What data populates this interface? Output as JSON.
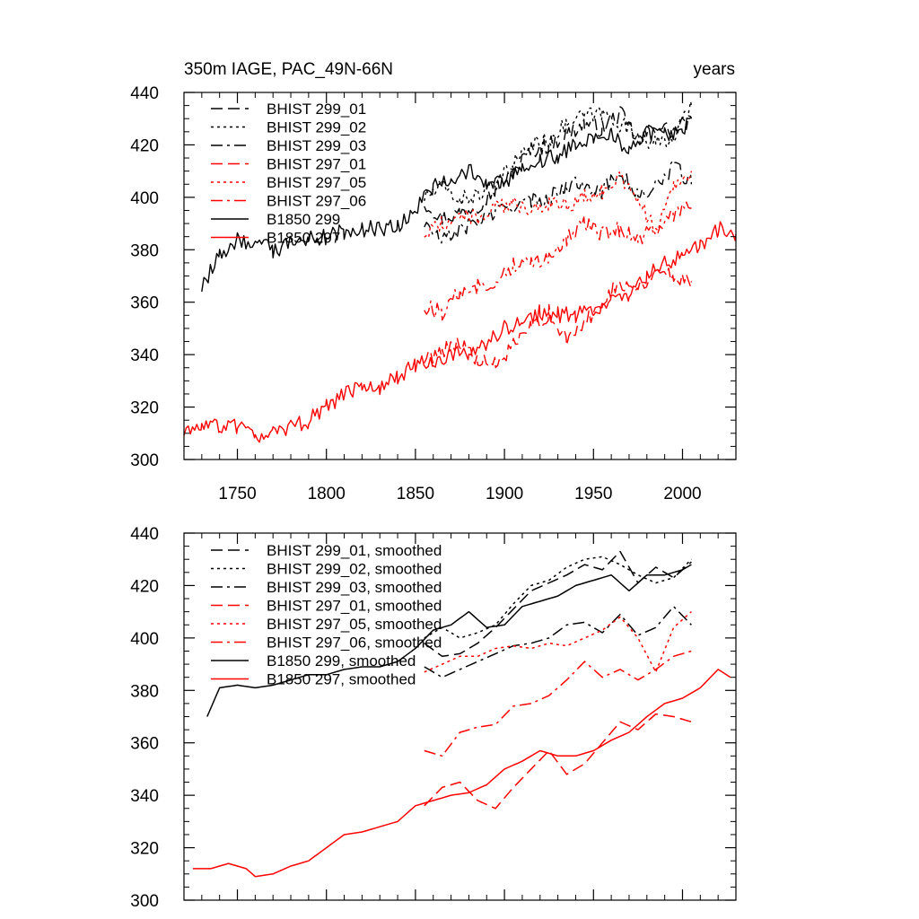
{
  "chart_data": [
    {
      "type": "line",
      "title_left": "350m IAGE, PAC_49N-66N",
      "title_right": "years",
      "xlabel": "",
      "ylabel": "",
      "xlim": [
        1720,
        2030
      ],
      "ylim": [
        300,
        440
      ],
      "x_ticks": [
        1750,
        1800,
        1850,
        1900,
        1950,
        2000
      ],
      "y_ticks": [
        300,
        320,
        340,
        360,
        380,
        400,
        420,
        440
      ],
      "legend_position": "top-left",
      "series": [
        {
          "name": "BHIST 299_01",
          "color": "#000000",
          "dash": "dash",
          "x": [
            1855,
            1865,
            1875,
            1885,
            1895,
            1905,
            1915,
            1925,
            1935,
            1945,
            1955,
            1965,
            1975,
            1985,
            1995,
            2005
          ],
          "y": [
            398,
            392,
            394,
            397,
            403,
            410,
            418,
            420,
            424,
            428,
            426,
            432,
            422,
            427,
            425,
            430
          ]
        },
        {
          "name": "BHIST 299_02",
          "color": "#000000",
          "dash": "dot",
          "x": [
            1855,
            1865,
            1875,
            1885,
            1895,
            1905,
            1915,
            1925,
            1935,
            1945,
            1955,
            1965,
            1975,
            1985,
            1995,
            2005
          ],
          "y": [
            400,
            404,
            399,
            401,
            404,
            413,
            420,
            422,
            428,
            431,
            432,
            428,
            424,
            420,
            423,
            435
          ]
        },
        {
          "name": "BHIST 299_03",
          "color": "#000000",
          "dash": "dashdot",
          "x": [
            1855,
            1865,
            1875,
            1885,
            1895,
            1905,
            1915,
            1925,
            1935,
            1945,
            1955,
            1965,
            1975,
            1985,
            1995,
            2005
          ],
          "y": [
            390,
            383,
            388,
            391,
            394,
            397,
            398,
            400,
            404,
            406,
            402,
            410,
            400,
            404,
            412,
            405
          ]
        },
        {
          "name": "BHIST 297_01",
          "color": "#ff0000",
          "dash": "dash",
          "x": [
            1855,
            1865,
            1875,
            1885,
            1895,
            1905,
            1915,
            1925,
            1935,
            1945,
            1955,
            1965,
            1975,
            1985,
            1995,
            2005
          ],
          "y": [
            338,
            342,
            345,
            337,
            336,
            343,
            350,
            356,
            345,
            352,
            360,
            368,
            365,
            372,
            370,
            368
          ]
        },
        {
          "name": "BHIST 297_05",
          "color": "#ff0000",
          "dash": "dot",
          "x": [
            1855,
            1865,
            1875,
            1885,
            1895,
            1905,
            1915,
            1925,
            1935,
            1945,
            1955,
            1965,
            1975,
            1985,
            1995,
            2005
          ],
          "y": [
            386,
            390,
            393,
            392,
            396,
            397,
            396,
            398,
            397,
            400,
            402,
            408,
            400,
            386,
            405,
            410
          ]
        },
        {
          "name": "BHIST 297_06",
          "color": "#ff0000",
          "dash": "dashdot",
          "x": [
            1855,
            1865,
            1875,
            1885,
            1895,
            1905,
            1915,
            1925,
            1935,
            1945,
            1955,
            1965,
            1975,
            1985,
            1995,
            2005
          ],
          "y": [
            358,
            356,
            364,
            366,
            368,
            374,
            375,
            378,
            384,
            390,
            386,
            388,
            384,
            388,
            393,
            396
          ]
        },
        {
          "name": "B1850 299",
          "color": "#000000",
          "dash": "solid",
          "x": [
            1730,
            1740,
            1750,
            1760,
            1770,
            1780,
            1790,
            1800,
            1810,
            1820,
            1830,
            1840,
            1850,
            1860,
            1870,
            1880,
            1890,
            1900,
            1910,
            1920,
            1930,
            1940,
            1950,
            1960,
            1970,
            1980,
            1990,
            2000,
            2005
          ],
          "y": [
            365,
            378,
            384,
            382,
            380,
            382,
            384,
            385,
            387,
            388,
            388,
            389,
            396,
            404,
            406,
            410,
            405,
            405,
            412,
            414,
            416,
            420,
            422,
            425,
            418,
            424,
            424,
            426,
            430
          ]
        },
        {
          "name": "B1850 297",
          "color": "#ff0000",
          "dash": "solid",
          "x": [
            1720,
            1730,
            1740,
            1750,
            1760,
            1770,
            1780,
            1790,
            1800,
            1810,
            1820,
            1830,
            1840,
            1850,
            1860,
            1870,
            1880,
            1890,
            1900,
            1910,
            1920,
            1930,
            1940,
            1950,
            1960,
            1970,
            1980,
            1990,
            2000,
            2010,
            2020,
            2030
          ],
          "y": [
            310,
            313,
            313,
            312,
            309,
            310,
            312,
            315,
            320,
            325,
            327,
            328,
            331,
            336,
            338,
            340,
            340,
            344,
            350,
            352,
            356,
            355,
            355,
            358,
            360,
            363,
            370,
            375,
            377,
            382,
            388,
            386
          ]
        }
      ]
    },
    {
      "type": "line",
      "title_left": "",
      "title_right": "",
      "xlabel": "",
      "ylabel": "",
      "xlim": [
        1720,
        2030
      ],
      "ylim": [
        300,
        440
      ],
      "x_ticks": [
        1750,
        1800,
        1850,
        1900,
        1950,
        2000
      ],
      "y_ticks": [
        300,
        320,
        340,
        360,
        380,
        400,
        420,
        440
      ],
      "legend_position": "top-left",
      "series": [
        {
          "name": "BHIST 299_01, smoothed",
          "color": "#000000",
          "dash": "dash",
          "x": [
            1855,
            1865,
            1875,
            1885,
            1895,
            1905,
            1915,
            1925,
            1935,
            1945,
            1955,
            1965,
            1975,
            1985,
            1995,
            2005
          ],
          "y": [
            398,
            393,
            394,
            398,
            404,
            411,
            418,
            421,
            424,
            428,
            426,
            433,
            421,
            427,
            423,
            429
          ]
        },
        {
          "name": "BHIST 299_02, smoothed",
          "color": "#000000",
          "dash": "dot",
          "x": [
            1855,
            1865,
            1875,
            1885,
            1895,
            1905,
            1915,
            1925,
            1935,
            1945,
            1955,
            1965,
            1975,
            1985,
            1995,
            2005
          ],
          "y": [
            400,
            404,
            400,
            402,
            405,
            413,
            420,
            422,
            427,
            430,
            431,
            428,
            424,
            421,
            423,
            430
          ]
        },
        {
          "name": "BHIST 299_03, smoothed",
          "color": "#000000",
          "dash": "dashdot",
          "x": [
            1855,
            1865,
            1875,
            1885,
            1895,
            1905,
            1915,
            1925,
            1935,
            1945,
            1955,
            1965,
            1975,
            1985,
            1995,
            2005
          ],
          "y": [
            389,
            385,
            388,
            391,
            394,
            397,
            398,
            400,
            405,
            406,
            402,
            409,
            401,
            404,
            412,
            405
          ]
        },
        {
          "name": "BHIST 297_01, smoothed",
          "color": "#ff0000",
          "dash": "dash",
          "x": [
            1855,
            1865,
            1875,
            1885,
            1895,
            1905,
            1915,
            1925,
            1935,
            1945,
            1955,
            1965,
            1975,
            1985,
            1995,
            2005
          ],
          "y": [
            336,
            343,
            345,
            338,
            335,
            343,
            350,
            357,
            348,
            352,
            360,
            368,
            365,
            371,
            370,
            368
          ]
        },
        {
          "name": "BHIST 297_05, smoothed",
          "color": "#ff0000",
          "dash": "dot",
          "x": [
            1855,
            1865,
            1875,
            1885,
            1895,
            1905,
            1915,
            1925,
            1935,
            1945,
            1955,
            1965,
            1975,
            1985,
            1995,
            2005
          ],
          "y": [
            387,
            390,
            393,
            393,
            396,
            397,
            396,
            398,
            397,
            400,
            403,
            408,
            400,
            387,
            404,
            410
          ]
        },
        {
          "name": "BHIST 297_06, smoothed",
          "color": "#ff0000",
          "dash": "dashdot",
          "x": [
            1855,
            1865,
            1875,
            1885,
            1895,
            1905,
            1915,
            1925,
            1935,
            1945,
            1955,
            1965,
            1975,
            1985,
            1995,
            2005
          ],
          "y": [
            357,
            355,
            364,
            366,
            367,
            374,
            375,
            378,
            384,
            391,
            385,
            388,
            384,
            388,
            393,
            395
          ]
        },
        {
          "name": "B1850 299, smoothed",
          "color": "#000000",
          "dash": "solid",
          "x": [
            1733,
            1740,
            1750,
            1760,
            1770,
            1780,
            1790,
            1800,
            1810,
            1820,
            1830,
            1840,
            1850,
            1860,
            1870,
            1880,
            1890,
            1900,
            1910,
            1920,
            1930,
            1940,
            1950,
            1960,
            1970,
            1980,
            1990,
            2000,
            2005
          ],
          "y": [
            370,
            381,
            382,
            381,
            382,
            384,
            386,
            386,
            388,
            389,
            389,
            391,
            396,
            403,
            405,
            410,
            404,
            405,
            412,
            414,
            416,
            420,
            422,
            424,
            418,
            424,
            424,
            426,
            428
          ]
        },
        {
          "name": "B1850 297, smoothed",
          "color": "#ff0000",
          "dash": "solid",
          "x": [
            1725,
            1735,
            1745,
            1755,
            1760,
            1770,
            1780,
            1790,
            1800,
            1810,
            1820,
            1830,
            1840,
            1850,
            1860,
            1870,
            1880,
            1890,
            1900,
            1910,
            1920,
            1930,
            1940,
            1950,
            1960,
            1970,
            1980,
            1990,
            2000,
            2010,
            2020,
            2027
          ],
          "y": [
            312,
            312,
            314,
            312,
            309,
            310,
            313,
            315,
            320,
            325,
            326,
            328,
            330,
            336,
            338,
            340,
            341,
            344,
            350,
            353,
            357,
            355,
            355,
            357,
            361,
            364,
            370,
            375,
            377,
            381,
            388,
            385
          ]
        }
      ]
    }
  ]
}
